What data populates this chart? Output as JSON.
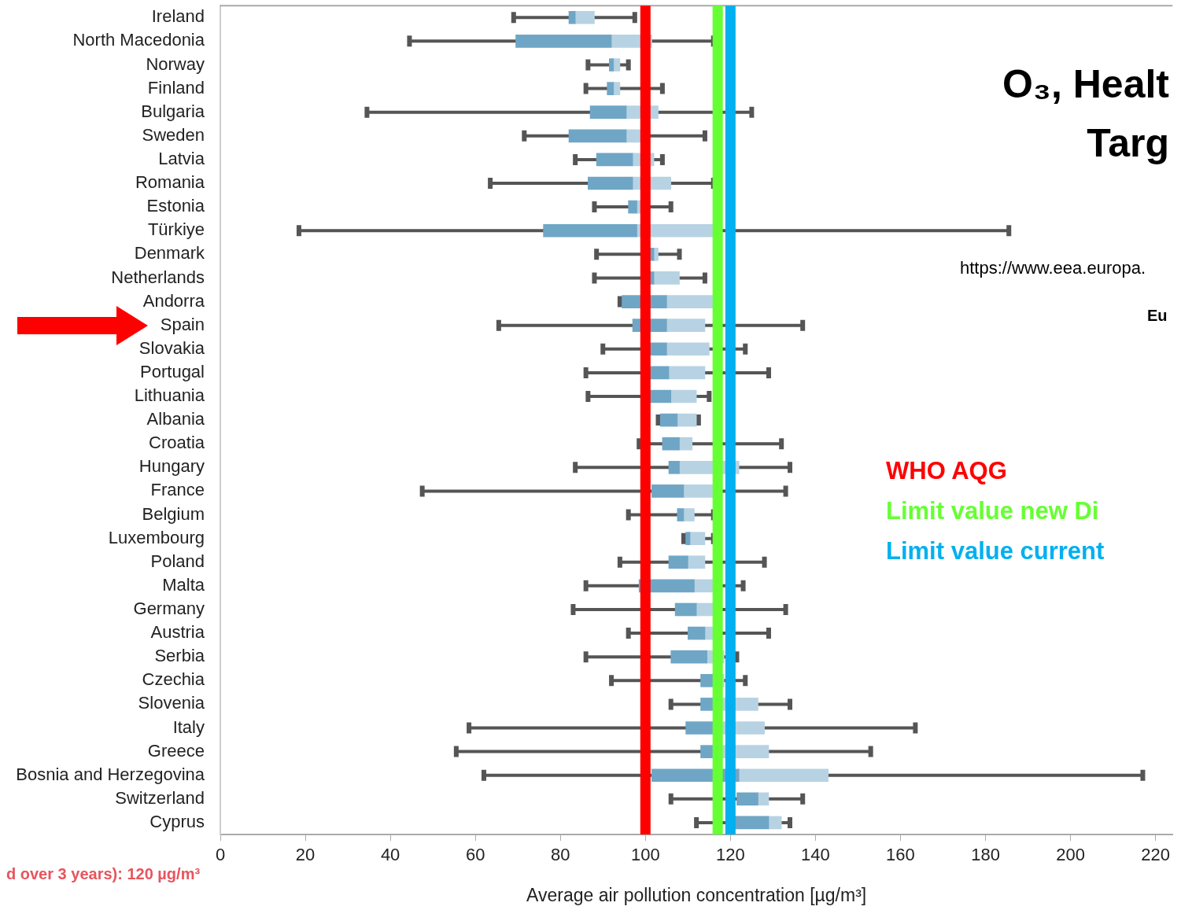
{
  "chart_data": {
    "type": "box",
    "orientation": "horizontal",
    "title": "O₃, Healt",
    "subtitle": "Targ",
    "xlabel": "Average air pollution concentration [µg/m³]",
    "categories": [
      "Ireland",
      "North Macedonia",
      "Norway",
      "Finland",
      "Bulgaria",
      "Sweden",
      "Latvia",
      "Romania",
      "Estonia",
      "Türkiye",
      "Denmark",
      "Netherlands",
      "Andorra",
      "Spain",
      "Slovakia",
      "Portugal",
      "Lithuania",
      "Albania",
      "Croatia",
      "Hungary",
      "France",
      "Belgium",
      "Luxembourg",
      "Poland",
      "Malta",
      "Germany",
      "Austria",
      "Serbia",
      "Czechia",
      "Slovenia",
      "Italy",
      "Greece",
      "Bosnia and Herzegovina",
      "Switzerland",
      "Cyprus"
    ],
    "series": [
      {
        "type": "box",
        "color": "#6fa6c6",
        "boxes": [
          {
            "low": 69,
            "q1": 82,
            "median": 83.5,
            "q3": 88,
            "high": 97.5
          },
          {
            "low": 44.5,
            "q1": 69.5,
            "median": 92,
            "q3": 101.5,
            "high": 116
          },
          {
            "low": 86.5,
            "q1": 91.5,
            "median": 92.5,
            "q3": 94,
            "high": 96
          },
          {
            "low": 86,
            "q1": 91,
            "median": 92.5,
            "q3": 94,
            "high": 104
          },
          {
            "low": 34.5,
            "q1": 87,
            "median": 95.5,
            "q3": 103,
            "high": 125
          },
          {
            "low": 71.5,
            "q1": 82,
            "median": 95.5,
            "q3": 99,
            "high": 114
          },
          {
            "low": 83.5,
            "q1": 88.5,
            "median": 97,
            "q3": 102,
            "high": 104
          },
          {
            "low": 63.5,
            "q1": 86.5,
            "median": 97,
            "q3": 106,
            "high": 116
          },
          {
            "low": 88,
            "q1": 96,
            "median": 98,
            "q3": 99,
            "high": 106
          },
          {
            "low": 18.5,
            "q1": 76,
            "median": 98,
            "q3": 116,
            "high": 185.5
          },
          {
            "low": 88.5,
            "q1": 99,
            "median": 102,
            "q3": 103,
            "high": 108
          },
          {
            "low": 88,
            "q1": 99,
            "median": 102,
            "q3": 108,
            "high": 114
          },
          {
            "low": 94,
            "q1": 94.5,
            "median": 105,
            "q3": 116,
            "high": 116
          },
          {
            "low": 65.5,
            "q1": 97,
            "median": 105,
            "q3": 114,
            "high": 137
          },
          {
            "low": 90,
            "q1": 99,
            "median": 105,
            "q3": 115,
            "high": 123.5
          },
          {
            "low": 86,
            "q1": 99,
            "median": 105.5,
            "q3": 114,
            "high": 129
          },
          {
            "low": 86.5,
            "q1": 99,
            "median": 106,
            "q3": 112,
            "high": 115
          },
          {
            "low": 103,
            "q1": 103.5,
            "median": 107.5,
            "q3": 112,
            "high": 112.5
          },
          {
            "low": 98.5,
            "q1": 104,
            "median": 108,
            "q3": 111,
            "high": 132
          },
          {
            "low": 83.5,
            "q1": 105.5,
            "median": 108,
            "q3": 122,
            "high": 134
          },
          {
            "low": 47.5,
            "q1": 101.5,
            "median": 109,
            "q3": 116,
            "high": 133
          },
          {
            "low": 96,
            "q1": 107.5,
            "median": 109,
            "q3": 111.5,
            "high": 116
          },
          {
            "low": 109,
            "q1": 109.5,
            "median": 110.5,
            "q3": 114,
            "high": 116
          },
          {
            "low": 94,
            "q1": 105.5,
            "median": 110,
            "q3": 114,
            "high": 128
          },
          {
            "low": 86,
            "q1": 98.5,
            "median": 111.5,
            "q3": 117,
            "high": 123
          },
          {
            "low": 83,
            "q1": 107,
            "median": 112,
            "q3": 116,
            "high": 133
          },
          {
            "low": 96,
            "q1": 110,
            "median": 114,
            "q3": 116,
            "high": 129
          },
          {
            "low": 86,
            "q1": 106,
            "median": 114.5,
            "q3": 118.5,
            "high": 121.5
          },
          {
            "low": 92,
            "q1": 113,
            "median": 116,
            "q3": 118.5,
            "high": 123.5
          },
          {
            "low": 106,
            "q1": 113,
            "median": 116,
            "q3": 126.5,
            "high": 134
          },
          {
            "low": 58.5,
            "q1": 109.5,
            "median": 116,
            "q3": 128,
            "high": 163.5
          },
          {
            "low": 55.5,
            "q1": 113,
            "median": 116,
            "q3": 129,
            "high": 153
          },
          {
            "low": 62,
            "q1": 101.5,
            "median": 122,
            "q3": 143,
            "high": 217
          },
          {
            "low": 106,
            "q1": 121.5,
            "median": 126.5,
            "q3": 129,
            "high": 137
          },
          {
            "low": 112,
            "q1": 121,
            "median": 129,
            "q3": 132,
            "high": 134
          }
        ]
      }
    ],
    "xlim": [
      0,
      224
    ],
    "xticks": [
      0,
      20,
      40,
      60,
      80,
      100,
      120,
      140,
      160,
      180,
      200,
      220
    ],
    "ref_lines": [
      {
        "axis": "x",
        "value": 100,
        "label": "WHO AQG",
        "color": "#ff0000"
      },
      {
        "axis": "x",
        "value": 117,
        "label": "Limit value new Di",
        "color": "#66ff33"
      },
      {
        "axis": "x",
        "value": 120,
        "label": "Limit value current",
        "color": "#00b0f0"
      }
    ],
    "annotations": [
      "https://www.eea.europa.",
      "Eu",
      "d over 3 years): 120 µg/m³"
    ]
  }
}
